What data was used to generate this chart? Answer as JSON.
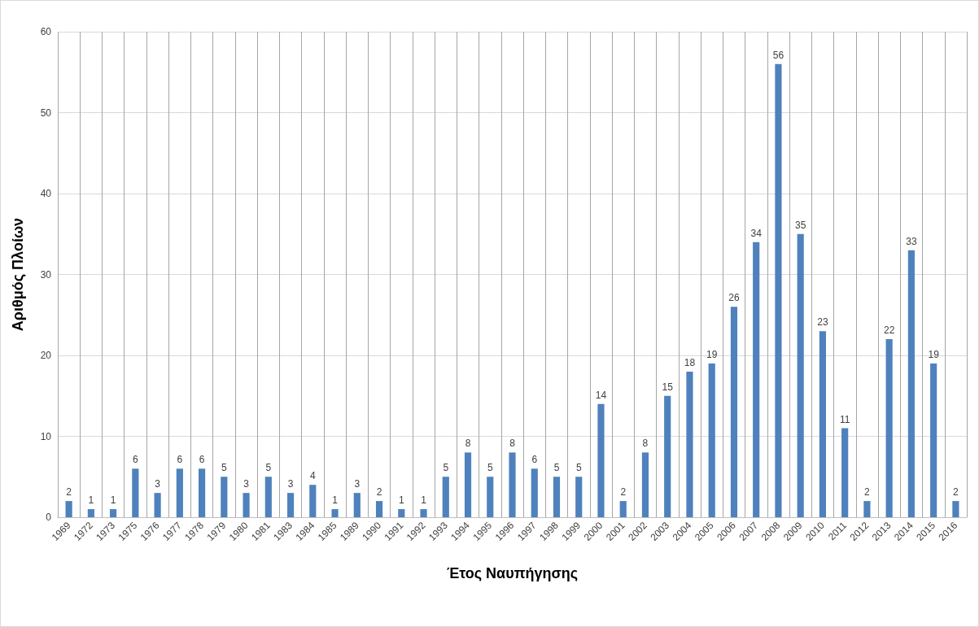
{
  "chart_data": {
    "type": "bar",
    "xlabel": "Έτος Ναυπήγησης",
    "ylabel": "Αριθμός Πλοίων",
    "categories": [
      "1969",
      "1972",
      "1973",
      "1975",
      "1976",
      "1977",
      "1978",
      "1979",
      "1980",
      "1981",
      "1983",
      "1984",
      "1985",
      "1989",
      "1990",
      "1991",
      "1992",
      "1993",
      "1994",
      "1995",
      "1996",
      "1997",
      "1998",
      "1999",
      "2000",
      "2001",
      "2002",
      "2003",
      "2004",
      "2005",
      "2006",
      "2007",
      "2008",
      "2009",
      "2010",
      "2011",
      "2012",
      "2013",
      "2014",
      "2015",
      "2016"
    ],
    "values": [
      2,
      1,
      1,
      6,
      3,
      6,
      6,
      5,
      3,
      5,
      3,
      4,
      1,
      3,
      2,
      1,
      1,
      5,
      8,
      5,
      8,
      6,
      5,
      5,
      14,
      2,
      8,
      15,
      18,
      19,
      26,
      34,
      56,
      35,
      23,
      11,
      2,
      22,
      33,
      19,
      2
    ],
    "color": "#4f81bd",
    "ylim": [
      0,
      60
    ],
    "yticks": [
      0,
      10,
      20,
      30,
      40,
      50,
      60
    ],
    "grid": true,
    "data_labels": true
  }
}
